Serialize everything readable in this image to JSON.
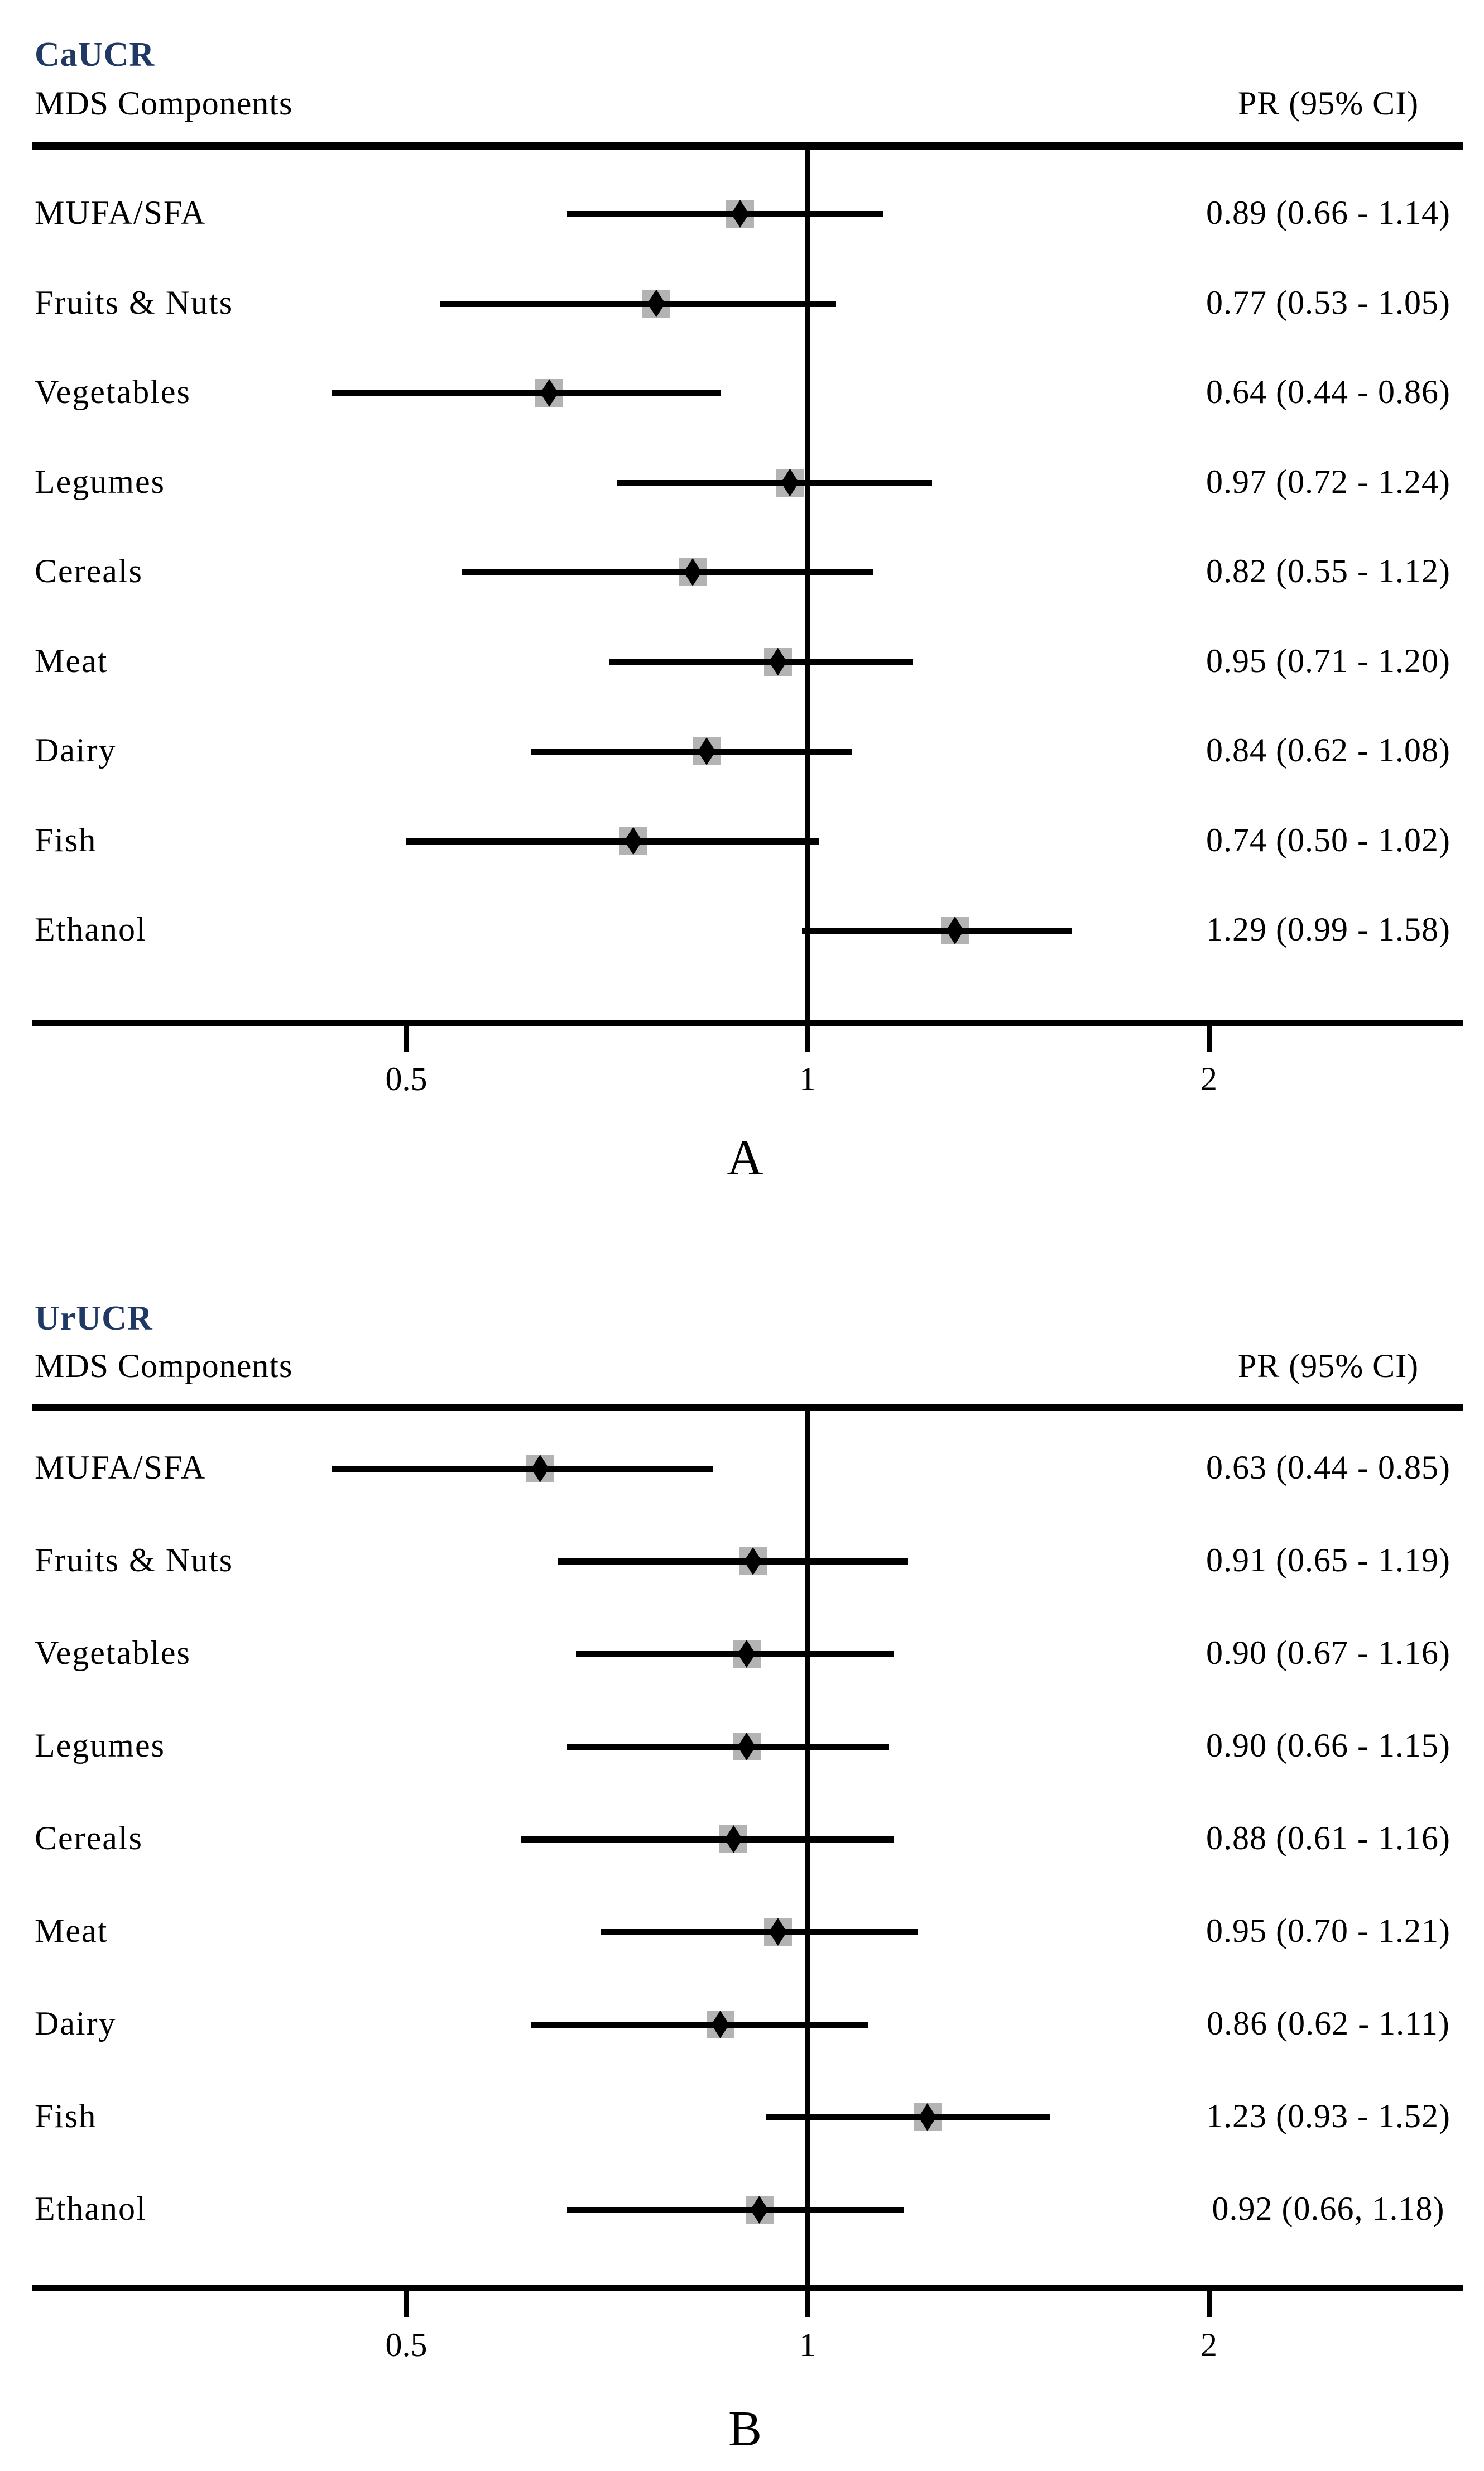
{
  "colors": {
    "background": "#ffffff",
    "panel_title": "#1f3864",
    "text": "#000000",
    "lines": "#000000",
    "marker_box_fill": "#b3b3b3",
    "marker_diamond_fill": "#000000"
  },
  "chart_data": [
    {
      "type": "scatter",
      "subtype": "forest_plot",
      "panel_label": "A",
      "title": "CaUCR",
      "column_headers": {
        "left": "MDS Components",
        "right": "PR (95% CI)"
      },
      "x_axis": {
        "scale": "log",
        "ticks": [
          0.5,
          1,
          2
        ],
        "tick_labels": [
          "0.5",
          "1",
          "2"
        ],
        "range": [
          0.26,
          3.1
        ],
        "reference_line": 1
      },
      "rows": [
        {
          "label": "MUFA/SFA",
          "pr": 0.89,
          "ci_low": 0.66,
          "ci_high": 1.14,
          "display": "0.89 (0.66 - 1.14)"
        },
        {
          "label": "Fruits & Nuts",
          "pr": 0.77,
          "ci_low": 0.53,
          "ci_high": 1.05,
          "display": "0.77 (0.53 - 1.05)"
        },
        {
          "label": "Vegetables",
          "pr": 0.64,
          "ci_low": 0.44,
          "ci_high": 0.86,
          "display": "0.64 (0.44 - 0.86)"
        },
        {
          "label": "Legumes",
          "pr": 0.97,
          "ci_low": 0.72,
          "ci_high": 1.24,
          "display": "0.97 (0.72 - 1.24)"
        },
        {
          "label": "Cereals",
          "pr": 0.82,
          "ci_low": 0.55,
          "ci_high": 1.12,
          "display": "0.82 (0.55 - 1.12)"
        },
        {
          "label": "Meat",
          "pr": 0.95,
          "ci_low": 0.71,
          "ci_high": 1.2,
          "display": "0.95 (0.71 - 1.20)"
        },
        {
          "label": "Dairy",
          "pr": 0.84,
          "ci_low": 0.62,
          "ci_high": 1.08,
          "display": "0.84 (0.62 - 1.08)"
        },
        {
          "label": "Fish",
          "pr": 0.74,
          "ci_low": 0.5,
          "ci_high": 1.02,
          "display": "0.74 (0.50 - 1.02)"
        },
        {
          "label": "Ethanol",
          "pr": 1.29,
          "ci_low": 0.99,
          "ci_high": 1.58,
          "display": "1.29 (0.99 - 1.58)"
        }
      ]
    },
    {
      "type": "scatter",
      "subtype": "forest_plot",
      "panel_label": "B",
      "title": "UrUCR",
      "column_headers": {
        "left": "MDS Components",
        "right": "PR (95% CI)"
      },
      "x_axis": {
        "scale": "log",
        "ticks": [
          0.5,
          1,
          2
        ],
        "tick_labels": [
          "0.5",
          "1",
          "2"
        ],
        "range": [
          0.26,
          3.1
        ],
        "reference_line": 1
      },
      "rows": [
        {
          "label": "MUFA/SFA",
          "pr": 0.63,
          "ci_low": 0.44,
          "ci_high": 0.85,
          "display": "0.63 (0.44 - 0.85)"
        },
        {
          "label": "Fruits & Nuts",
          "pr": 0.91,
          "ci_low": 0.65,
          "ci_high": 1.19,
          "display": "0.91 (0.65 - 1.19)"
        },
        {
          "label": "Vegetables",
          "pr": 0.9,
          "ci_low": 0.67,
          "ci_high": 1.16,
          "display": "0.90 (0.67 - 1.16)"
        },
        {
          "label": "Legumes",
          "pr": 0.9,
          "ci_low": 0.66,
          "ci_high": 1.15,
          "display": "0.90 (0.66 - 1.15)"
        },
        {
          "label": "Cereals",
          "pr": 0.88,
          "ci_low": 0.61,
          "ci_high": 1.16,
          "display": "0.88 (0.61 - 1.16)"
        },
        {
          "label": "Meat",
          "pr": 0.95,
          "ci_low": 0.7,
          "ci_high": 1.21,
          "display": "0.95 (0.70 - 1.21)"
        },
        {
          "label": "Dairy",
          "pr": 0.86,
          "ci_low": 0.62,
          "ci_high": 1.11,
          "display": "0.86 (0.62 - 1.11)"
        },
        {
          "label": "Fish",
          "pr": 1.23,
          "ci_low": 0.93,
          "ci_high": 1.52,
          "display": "1.23 (0.93 - 1.52)"
        },
        {
          "label": "Ethanol",
          "pr": 0.92,
          "ci_low": 0.66,
          "ci_high": 1.18,
          "display": "0.92 (0.66, 1.18)"
        }
      ]
    }
  ]
}
